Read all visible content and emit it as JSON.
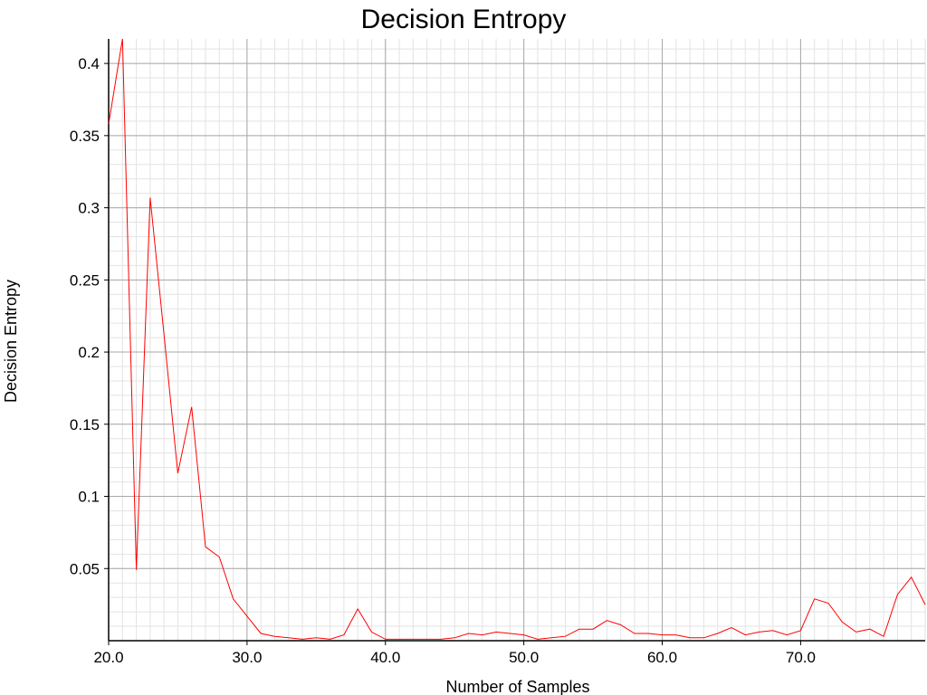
{
  "chart_data": {
    "type": "line",
    "title": "Decision Entropy",
    "xlabel": "Number of Samples",
    "ylabel": "Decision Entropy",
    "xlim": [
      20,
      79
    ],
    "ylim": [
      0,
      0.417
    ],
    "grid": true,
    "x_ticks": [
      20,
      30,
      40,
      50,
      60,
      70
    ],
    "x_tick_labels": [
      "20.0",
      "30.0",
      "40.0",
      "50.0",
      "60.0",
      "70.0"
    ],
    "y_ticks": [
      0.05,
      0.1,
      0.15,
      0.2,
      0.25,
      0.3,
      0.35,
      0.4
    ],
    "y_tick_labels": [
      "0.05",
      "0.1",
      "0.15",
      "0.2",
      "0.25",
      "0.3",
      "0.35",
      "0.4"
    ],
    "series": [
      {
        "name": "Decision Entropy",
        "color": "#ff0000",
        "x": [
          20,
          21,
          22,
          23,
          24,
          25,
          26,
          27,
          28,
          29,
          30,
          31,
          32,
          33,
          34,
          35,
          36,
          37,
          38,
          39,
          40,
          41,
          42,
          43,
          44,
          45,
          46,
          47,
          48,
          49,
          50,
          51,
          52,
          53,
          54,
          55,
          56,
          57,
          58,
          59,
          60,
          61,
          62,
          63,
          64,
          65,
          66,
          67,
          68,
          69,
          70,
          71,
          72,
          73,
          74,
          75,
          76,
          77,
          78,
          79
        ],
        "values": [
          0.358,
          0.417,
          0.049,
          0.307,
          0.212,
          0.116,
          0.162,
          0.065,
          0.058,
          0.029,
          0.017,
          0.005,
          0.003,
          0.002,
          0.001,
          0.002,
          0.001,
          0.004,
          0.022,
          0.006,
          0.001,
          0.001,
          0.001,
          0.001,
          0.001,
          0.002,
          0.005,
          0.004,
          0.006,
          0.005,
          0.004,
          0.001,
          0.002,
          0.003,
          0.008,
          0.008,
          0.014,
          0.011,
          0.005,
          0.005,
          0.004,
          0.004,
          0.002,
          0.002,
          0.005,
          0.009,
          0.004,
          0.006,
          0.007,
          0.004,
          0.007,
          0.029,
          0.026,
          0.013,
          0.006,
          0.008,
          0.003,
          0.032,
          0.044,
          0.025
        ]
      }
    ]
  }
}
